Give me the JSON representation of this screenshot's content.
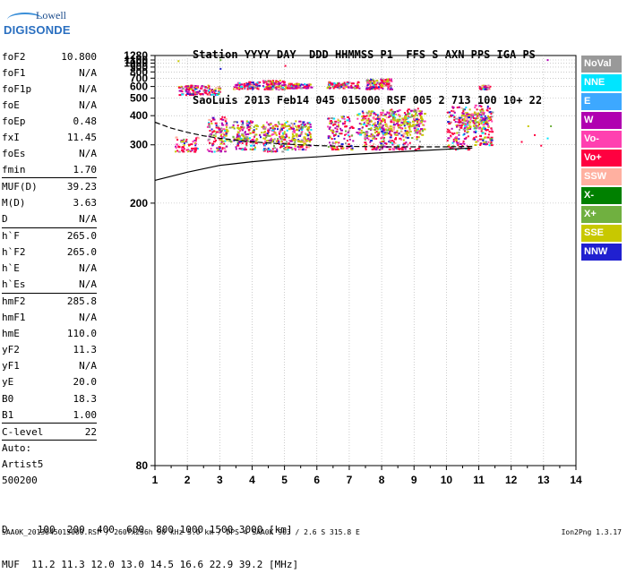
{
  "logo": {
    "line1": "Lowell",
    "line2": "DIGISONDE"
  },
  "header": {
    "row1": "Station YYYY DAY  DDD HHMMSS P1  FFS S AXN PPS IGA PS",
    "row2": "SaoLuis 2013 Feb14 045 015000 RSF 005 2 713 100 10+ 22"
  },
  "params": [
    {
      "label": "foF2",
      "value": "10.800"
    },
    {
      "label": "foF1",
      "value": "N/A"
    },
    {
      "label": "foF1p",
      "value": "N/A"
    },
    {
      "label": "foE",
      "value": "N/A"
    },
    {
      "label": "foEp",
      "value": "0.48"
    },
    {
      "label": "fxI",
      "value": "11.45"
    },
    {
      "label": "foEs",
      "value": "N/A"
    },
    {
      "label": "fmin",
      "value": "1.70",
      "sep": true
    },
    {
      "label": "MUF(D)",
      "value": "39.23"
    },
    {
      "label": "M(D)",
      "value": "3.63"
    },
    {
      "label": "D",
      "value": "N/A",
      "sep": true
    },
    {
      "label": "h`F",
      "value": "265.0"
    },
    {
      "label": "h`F2",
      "value": "265.0"
    },
    {
      "label": "h`E",
      "value": "N/A"
    },
    {
      "label": "h`Es",
      "value": "N/A",
      "sep": true
    },
    {
      "label": "hmF2",
      "value": "285.8"
    },
    {
      "label": "hmF1",
      "value": "N/A"
    },
    {
      "label": "hmE",
      "value": "110.0"
    },
    {
      "label": "yF2",
      "value": "11.3"
    },
    {
      "label": "yF1",
      "value": "N/A"
    },
    {
      "label": "yE",
      "value": "20.0"
    },
    {
      "label": "B0",
      "value": "18.3"
    },
    {
      "label": "B1",
      "value": "1.00",
      "sep": true
    },
    {
      "label": "C-level",
      "value": "22",
      "sep": true
    }
  ],
  "scaling": {
    "line1": "Auto:",
    "line2": "Artist5",
    "line3": "500200"
  },
  "legend": [
    {
      "label": "NoVal",
      "color": "#999999"
    },
    {
      "label": "NNE",
      "color": "#00e5ff"
    },
    {
      "label": "E",
      "color": "#3da8ff"
    },
    {
      "label": "W",
      "color": "#b000b0"
    },
    {
      "label": "Vo-",
      "color": "#ff40b0"
    },
    {
      "label": "Vo+",
      "color": "#ff0040"
    },
    {
      "label": "SSW",
      "color": "#ffb0a0"
    },
    {
      "label": "X-",
      "color": "#008000"
    },
    {
      "label": "X+",
      "color": "#70b040"
    },
    {
      "label": "SSE",
      "color": "#c8c800"
    },
    {
      "label": "NNW",
      "color": "#2020d0"
    }
  ],
  "footer": {
    "d_line": "D     100  200  400  600  800 1000 1500 3000 [km]",
    "muf_line": "MUF  11.2 11.3 12.0 13.0 14.5 16.6 22.9 39.2 [MHz]",
    "file_line": "SAA0K_2013045015000.RSF / 260fx256h 50 kHz 5.0 km / DPS-4 SAA0K 903 / 2.6 S 315.8 E",
    "version": "Ion2Png 1.3.17"
  },
  "chart_data": {
    "type": "scatter",
    "x_ticks": [
      "1",
      "2",
      "3",
      "4",
      "5",
      "6",
      "7",
      "8",
      "9",
      "10",
      "11",
      "12",
      "13",
      "14"
    ],
    "y_ticks": [
      "80",
      "200",
      "300",
      "400",
      "500",
      "600",
      "700",
      "800",
      "900",
      "1000",
      "1100",
      "1280"
    ],
    "xlim": [
      1,
      14
    ],
    "ylim": [
      80,
      1280
    ],
    "y_scale": "reciprocal",
    "grid": true,
    "traces": [
      {
        "name": "O-trace",
        "color": "#ff0040",
        "segments": [
          [
            1.6,
            2.3,
            285,
            325
          ],
          [
            2.6,
            3.2,
            285,
            400
          ],
          [
            3.4,
            4.1,
            290,
            380
          ],
          [
            4.3,
            5.0,
            285,
            370
          ],
          [
            5.0,
            5.8,
            290,
            370
          ],
          [
            6.3,
            7.1,
            290,
            400
          ],
          [
            7.4,
            8.2,
            290,
            420
          ],
          [
            8.2,
            9.2,
            290,
            440
          ],
          [
            10.0,
            10.7,
            290,
            450
          ],
          [
            10.8,
            11.4,
            300,
            460
          ]
        ]
      },
      {
        "name": "F2-second-hop",
        "color": "#ff0040",
        "segments": [
          [
            1.7,
            3.0,
            530,
            620
          ],
          [
            3.4,
            4.2,
            580,
            660
          ],
          [
            4.3,
            5.0,
            580,
            680
          ],
          [
            5.0,
            5.8,
            590,
            640
          ],
          [
            6.3,
            7.3,
            590,
            660
          ],
          [
            7.5,
            8.3,
            580,
            700
          ],
          [
            11.0,
            11.3,
            580,
            620
          ]
        ]
      },
      {
        "name": "X-trace",
        "color": "#c8c800",
        "segments": [
          [
            3.0,
            5.8,
            310,
            380
          ],
          [
            7.2,
            9.3,
            330,
            430
          ],
          [
            10.5,
            11.3,
            350,
            420
          ]
        ]
      }
    ],
    "profile_curves": [
      {
        "name": "true-height-profile",
        "x": [
          1,
          2,
          3,
          4,
          5,
          6,
          7,
          8,
          9,
          10,
          10.8
        ],
        "y": [
          230,
          243,
          255,
          262,
          268,
          272,
          277,
          281,
          285,
          289,
          292
        ]
      },
      {
        "name": "virtual-height-dashed",
        "x": [
          1,
          1.5,
          2,
          2.5,
          3,
          4,
          5,
          6,
          7,
          8,
          9,
          10,
          10.8
        ],
        "y": [
          372,
          350,
          336,
          325,
          318,
          308,
          302,
          298,
          296,
          295,
          295,
          295,
          296
        ]
      }
    ]
  }
}
